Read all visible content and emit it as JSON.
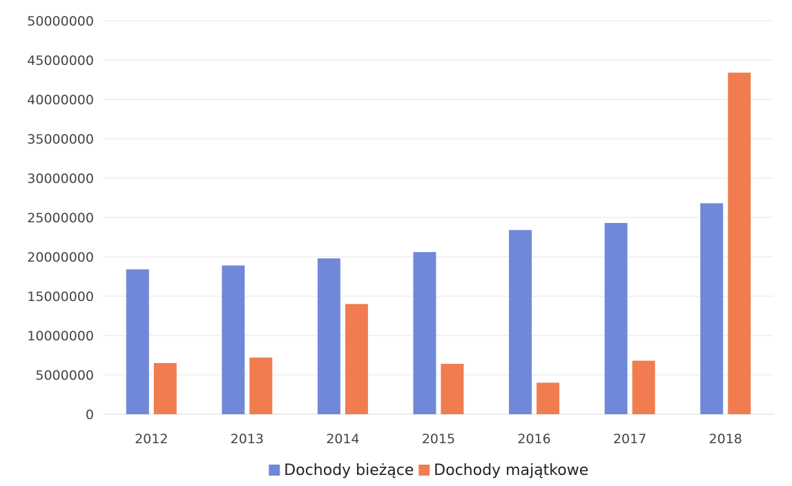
{
  "chart_data": {
    "type": "bar",
    "title": "",
    "xlabel": "",
    "ylabel": "",
    "categories": [
      "2012",
      "2013",
      "2014",
      "2015",
      "2016",
      "2017",
      "2018"
    ],
    "series": [
      {
        "name": "Dochody bieżące",
        "color": "#7088d8",
        "values": [
          18400000,
          18900000,
          19800000,
          20600000,
          23400000,
          24300000,
          26800000
        ]
      },
      {
        "name": "Dochody majątkowe",
        "color": "#f07c4f",
        "values": [
          6500000,
          7200000,
          14000000,
          6400000,
          4000000,
          6800000,
          43400000
        ]
      }
    ],
    "ylim": [
      0,
      50000000
    ],
    "yticks": [
      "0",
      "5000000",
      "10000000",
      "15000000",
      "20000000",
      "25000000",
      "30000000",
      "35000000",
      "40000000",
      "45000000",
      "50000000"
    ],
    "grid": true,
    "legend_position": "bottom"
  }
}
